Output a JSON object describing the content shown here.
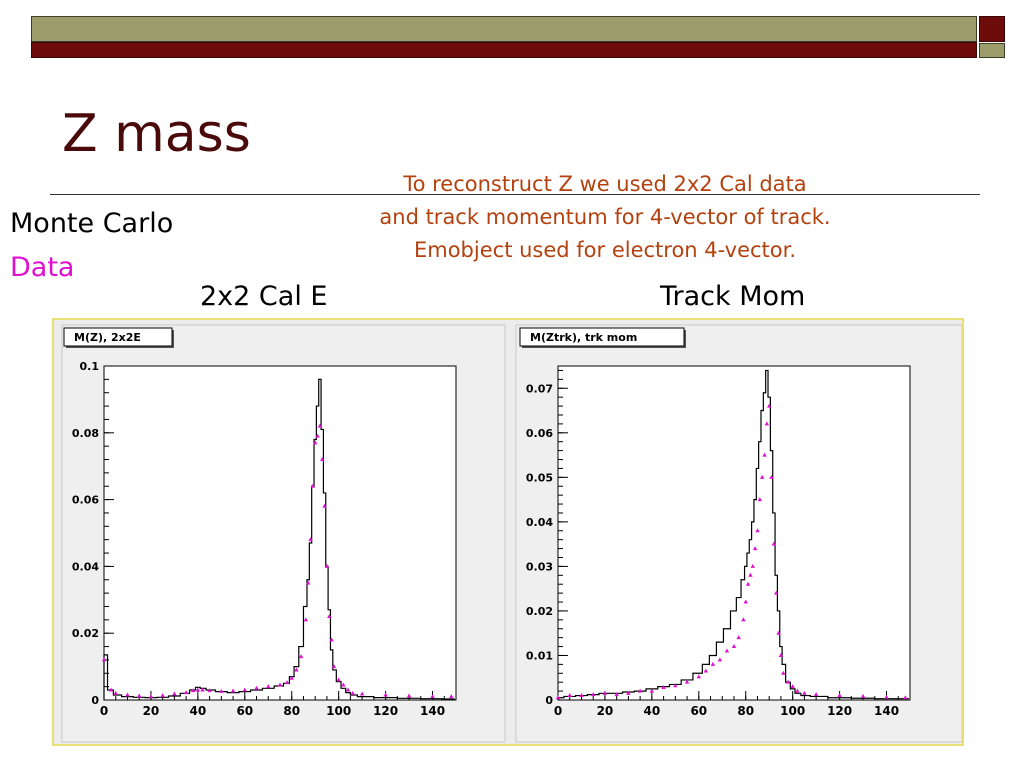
{
  "slide": {
    "title": "Z mass",
    "note_lines": [
      "To reconstruct Z we used 2x2 Cal data",
      "and track momentum for 4-vector of track.",
      "Emobject used for electron 4-vector."
    ],
    "legend": {
      "mc": "Monte Carlo",
      "data": "Data"
    },
    "panel_labels": [
      "2x2 Cal E",
      "Track Mom"
    ]
  },
  "colors": {
    "title": "#4a0a0a",
    "note": "#b4410e",
    "data": "#e010d0",
    "mc": "#000000",
    "bar_olive": "#9c9c6a",
    "bar_maroon": "#6e0c0c",
    "frame": "#e8e070"
  },
  "chart_data": [
    {
      "type": "line",
      "title": "M(Z), 2x2E",
      "xlim": [
        0,
        150
      ],
      "ylim": [
        0,
        0.1
      ],
      "xticks": [
        0,
        20,
        40,
        60,
        80,
        100,
        120,
        140
      ],
      "xtick_labels": [
        "0",
        "20",
        "40",
        "60",
        "80",
        "100",
        "120",
        "140"
      ],
      "yticks": [
        0,
        0.02,
        0.04,
        0.06,
        0.08,
        0.1
      ],
      "ytick_labels": [
        "0",
        "0.02",
        "0.04",
        "0.06",
        "0.08",
        "0.1"
      ],
      "series": [
        {
          "style": "histogram",
          "bin_width": 1.5,
          "x": [
            0,
            3,
            5,
            10,
            15,
            20,
            25,
            30,
            35,
            38,
            40,
            42,
            45,
            50,
            55,
            60,
            65,
            70,
            75,
            78,
            80,
            82,
            84,
            86,
            87,
            88,
            89,
            90,
            91,
            92,
            93,
            94,
            95,
            96,
            97,
            98,
            100,
            102,
            104,
            106,
            110,
            120,
            130,
            140,
            148
          ],
          "y": [
            0.0135,
            0.003,
            0.0015,
            0.001,
            0.0008,
            0.0007,
            0.0008,
            0.0012,
            0.002,
            0.003,
            0.0038,
            0.0035,
            0.003,
            0.0025,
            0.0022,
            0.0025,
            0.003,
            0.0035,
            0.0042,
            0.005,
            0.007,
            0.01,
            0.016,
            0.028,
            0.036,
            0.047,
            0.064,
            0.078,
            0.088,
            0.096,
            0.081,
            0.062,
            0.04,
            0.027,
            0.015,
            0.009,
            0.0055,
            0.0035,
            0.0022,
            0.0015,
            0.001,
            0.0007,
            0.0005,
            0.0004,
            0.0003
          ]
        },
        {
          "style": "markers",
          "x": [
            0,
            3,
            5,
            10,
            15,
            20,
            25,
            30,
            35,
            38,
            40,
            42,
            45,
            50,
            55,
            60,
            65,
            70,
            75,
            78,
            80,
            82,
            84,
            86,
            87,
            88,
            89,
            90,
            91,
            92,
            93,
            94,
            95,
            96,
            97,
            98,
            100,
            102,
            104,
            106,
            110,
            120,
            130,
            140,
            148
          ],
          "y": [
            0.012,
            0.003,
            0.002,
            0.0015,
            0.0012,
            0.001,
            0.0013,
            0.0018,
            0.0022,
            0.0028,
            0.003,
            0.003,
            0.0028,
            0.0026,
            0.0027,
            0.003,
            0.0035,
            0.004,
            0.0045,
            0.0052,
            0.0065,
            0.009,
            0.013,
            0.024,
            0.035,
            0.048,
            0.064,
            0.077,
            0.079,
            0.082,
            0.072,
            0.058,
            0.04,
            0.025,
            0.018,
            0.01,
            0.006,
            0.0045,
            0.003,
            0.002,
            0.0018,
            0.0015,
            0.0012,
            0.001,
            0.001
          ]
        }
      ]
    },
    {
      "type": "line",
      "title": "M(Ztrk), trk mom",
      "xlim": [
        0,
        150
      ],
      "ylim": [
        0,
        0.075
      ],
      "xticks": [
        0,
        20,
        40,
        60,
        80,
        100,
        120,
        140
      ],
      "xtick_labels": [
        "0",
        "20",
        "40",
        "60",
        "80",
        "100",
        "120",
        "140"
      ],
      "yticks": [
        0,
        0.01,
        0.02,
        0.03,
        0.04,
        0.05,
        0.06,
        0.07
      ],
      "ytick_labels": [
        "0",
        "0.01",
        "0.02",
        "0.03",
        "0.04",
        "0.05",
        "0.06",
        "0.07"
      ],
      "series": [
        {
          "style": "histogram",
          "bin_width": 1.5,
          "x": [
            0,
            5,
            10,
            15,
            20,
            25,
            30,
            35,
            40,
            45,
            50,
            55,
            60,
            63,
            66,
            69,
            72,
            75,
            77,
            79,
            80,
            81,
            82,
            83,
            84,
            85,
            86,
            87,
            88,
            89,
            90,
            91,
            92,
            93,
            94,
            95,
            96,
            98,
            100,
            102,
            105,
            110,
            120,
            130,
            140,
            148
          ],
          "y": [
            0.0005,
            0.0008,
            0.001,
            0.0012,
            0.0015,
            0.0015,
            0.0018,
            0.002,
            0.0025,
            0.003,
            0.0035,
            0.0045,
            0.006,
            0.008,
            0.01,
            0.013,
            0.016,
            0.02,
            0.023,
            0.027,
            0.03,
            0.033,
            0.036,
            0.04,
            0.045,
            0.052,
            0.058,
            0.065,
            0.069,
            0.074,
            0.068,
            0.056,
            0.042,
            0.028,
            0.02,
            0.012,
            0.008,
            0.004,
            0.0025,
            0.0015,
            0.001,
            0.0008,
            0.0005,
            0.0004,
            0.0003,
            0.0003
          ]
        },
        {
          "style": "markers",
          "x": [
            0,
            5,
            10,
            15,
            20,
            25,
            30,
            35,
            40,
            45,
            50,
            55,
            60,
            63,
            66,
            69,
            72,
            75,
            77,
            79,
            80,
            81,
            82,
            83,
            84,
            85,
            86,
            87,
            88,
            89,
            90,
            91,
            92,
            93,
            94,
            95,
            96,
            98,
            100,
            102,
            105,
            110,
            120,
            130,
            140,
            148
          ],
          "y": [
            0.0005,
            0.001,
            0.001,
            0.0012,
            0.0015,
            0.0012,
            0.0015,
            0.002,
            0.002,
            0.0028,
            0.0032,
            0.004,
            0.0052,
            0.0065,
            0.008,
            0.009,
            0.011,
            0.012,
            0.014,
            0.018,
            0.022,
            0.026,
            0.028,
            0.03,
            0.034,
            0.038,
            0.045,
            0.05,
            0.055,
            0.062,
            0.066,
            0.05,
            0.035,
            0.024,
            0.015,
            0.01,
            0.006,
            0.004,
            0.003,
            0.002,
            0.0015,
            0.0012,
            0.001,
            0.0008,
            0.0006,
            0.0005
          ]
        }
      ]
    }
  ]
}
